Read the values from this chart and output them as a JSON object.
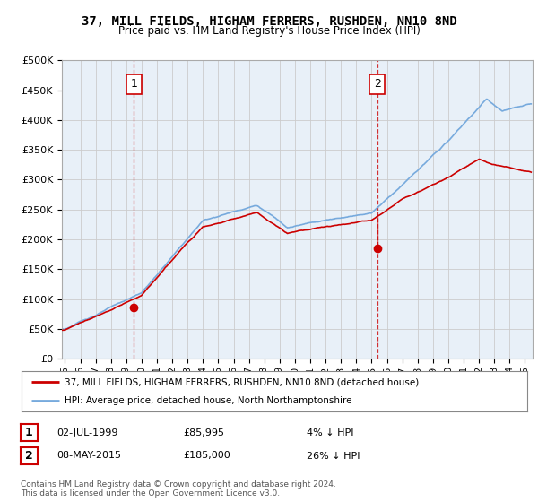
{
  "title": "37, MILL FIELDS, HIGHAM FERRERS, RUSHDEN, NN10 8ND",
  "subtitle": "Price paid vs. HM Land Registry's House Price Index (HPI)",
  "ylim": [
    0,
    500000
  ],
  "yticks": [
    0,
    50000,
    100000,
    150000,
    200000,
    250000,
    300000,
    350000,
    400000,
    450000,
    500000
  ],
  "xlim_start": 1994.8,
  "xlim_end": 2025.5,
  "hpi_color": "#77aadd",
  "price_color": "#cc0000",
  "dashed_line_color": "#cc0000",
  "bg_plot_color": "#e8f0f8",
  "legend_label_red": "37, MILL FIELDS, HIGHAM FERRERS, RUSHDEN, NN10 8ND (detached house)",
  "legend_label_blue": "HPI: Average price, detached house, North Northamptonshire",
  "ann1_year": 1999.5,
  "ann1_value": 85995,
  "ann2_year": 2015.36,
  "ann2_value": 185000,
  "ann1_date": "02-JUL-1999",
  "ann1_price": "£85,995",
  "ann1_pct": "4% ↓ HPI",
  "ann2_date": "08-MAY-2015",
  "ann2_price": "£185,000",
  "ann2_pct": "26% ↓ HPI",
  "footer1": "Contains HM Land Registry data © Crown copyright and database right 2024.",
  "footer2": "This data is licensed under the Open Government Licence v3.0.",
  "background_color": "#ffffff",
  "grid_color": "#cccccc",
  "xtick_years": [
    1995,
    1996,
    1997,
    1998,
    1999,
    2000,
    2001,
    2002,
    2003,
    2004,
    2005,
    2006,
    2007,
    2008,
    2009,
    2010,
    2011,
    2012,
    2013,
    2014,
    2015,
    2016,
    2017,
    2018,
    2019,
    2020,
    2021,
    2022,
    2023,
    2024,
    2025
  ]
}
